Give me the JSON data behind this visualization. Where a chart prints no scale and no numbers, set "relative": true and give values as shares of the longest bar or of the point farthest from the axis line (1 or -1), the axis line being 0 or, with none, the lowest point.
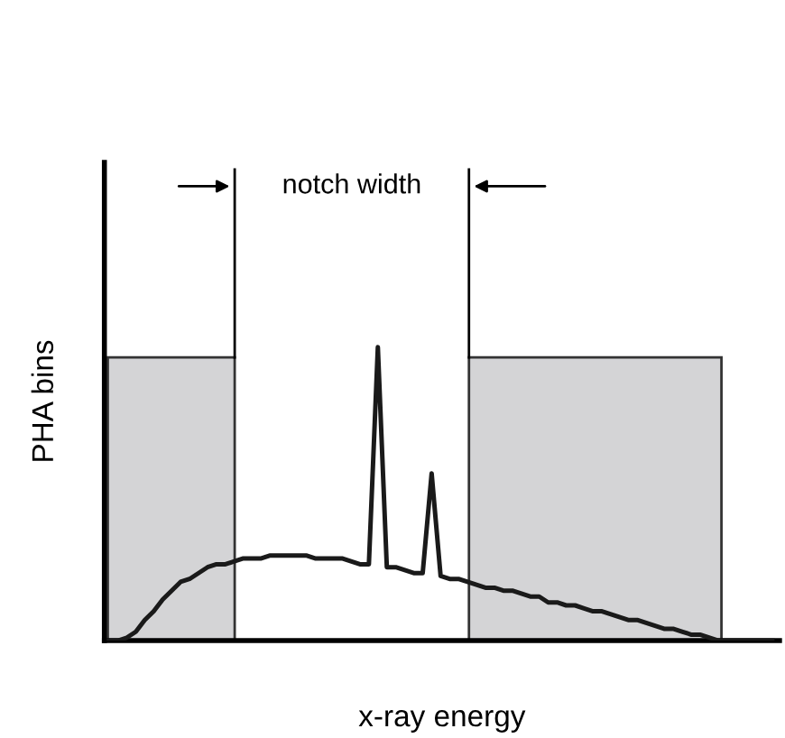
{
  "chart_data": {
    "type": "line",
    "relative": true,
    "xlabel": "x-ray energy",
    "ylabel": "PHA bins",
    "annotations": [
      "notch width"
    ],
    "categories": [
      null,
      null,
      null,
      null,
      null,
      null,
      null,
      null,
      null,
      null,
      null,
      null,
      null,
      null,
      null,
      null,
      null,
      null,
      null,
      null,
      null,
      null,
      null,
      null,
      null,
      null,
      null,
      null,
      null,
      null,
      null,
      null,
      null,
      null,
      null,
      null,
      null,
      null,
      null,
      null,
      null,
      null,
      null,
      null,
      null,
      null,
      null,
      null,
      null,
      null,
      null,
      null,
      null,
      null,
      null,
      null,
      null,
      null,
      null,
      null,
      null,
      null,
      null,
      null,
      null,
      null,
      null,
      null,
      null,
      null,
      null,
      null,
      null,
      null,
      null
    ],
    "series": [
      {
        "color": "#1a1a1a",
        "values": [
          0,
          0,
          0.01,
          0.03,
          0.07,
          0.1,
          0.14,
          0.17,
          0.2,
          0.21,
          0.23,
          0.25,
          0.26,
          0.26,
          0.27,
          0.28,
          0.28,
          0.28,
          0.29,
          0.29,
          0.29,
          0.29,
          0.29,
          0.28,
          0.28,
          0.28,
          0.28,
          0.27,
          0.26,
          0.26,
          1,
          0.25,
          0.25,
          0.24,
          0.23,
          0.23,
          0.57,
          0.22,
          0.21,
          0.21,
          0.2,
          0.19,
          0.18,
          0.18,
          0.17,
          0.17,
          0.16,
          0.15,
          0.15,
          0.13,
          0.13,
          0.12,
          0.12,
          0.11,
          0.1,
          0.1,
          0.09,
          0.08,
          0.07,
          0.07,
          0.06,
          0.05,
          0.04,
          0.04,
          0.03,
          0.02,
          0.02,
          0.01,
          0,
          0,
          0,
          0,
          0,
          0,
          0
        ]
      }
    ]
  }
}
